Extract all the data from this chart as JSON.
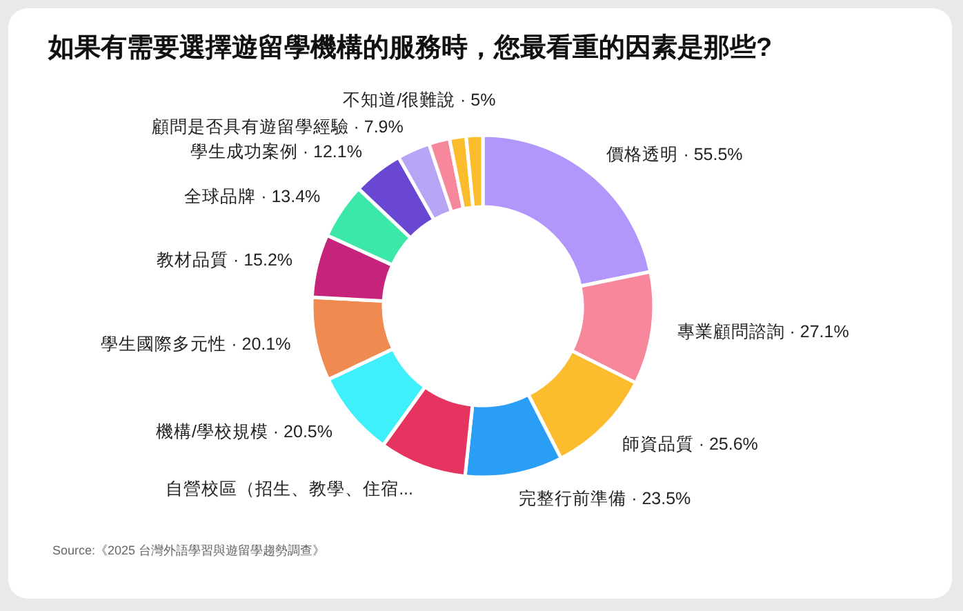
{
  "chart_data": {
    "type": "donut",
    "title": "如果有需要選擇遊留學機構的服務時，您最看重的因素是那些?",
    "categories": [
      "價格透明",
      "專業顧問諮詢",
      "師資品質",
      "完整行前準備",
      "自營校區（招生、教學、住宿...",
      "機構/學校規模",
      "學生國際多元性",
      "教材品質",
      "全球品牌",
      "學生成功案例",
      "顧問是否具有遊留學經驗",
      "不知道/很難說",
      null,
      null
    ],
    "values": [
      55.5,
      27.1,
      25.6,
      23.5,
      21,
      20.5,
      20.1,
      15.2,
      13.4,
      12.1,
      7.9,
      5,
      4,
      4
    ],
    "value_labels": [
      "· 55.5%",
      "· 27.1%",
      "· 25.6%",
      "· 23.5%",
      null,
      "· 20.5%",
      "· 20.1%",
      "· 15.2%",
      "· 13.4%",
      "· 12.1%",
      "· 7.9%",
      "· 5%",
      null,
      null
    ],
    "colors": [
      "#b197fc",
      "#f7879b",
      "#fbbc2e",
      "#2a9df4",
      "#e5345f",
      "#3ff0fa",
      "#ef8a50",
      "#c6237b",
      "#3be8a8",
      "#6a47d2",
      "#b7a4f5",
      "#f7879b",
      "#fbbc2e",
      "#fbbc2e"
    ],
    "legend": false,
    "annotations": [
      "Source:《2025 台灣外語學習與遊留學趨勢調查》"
    ]
  }
}
